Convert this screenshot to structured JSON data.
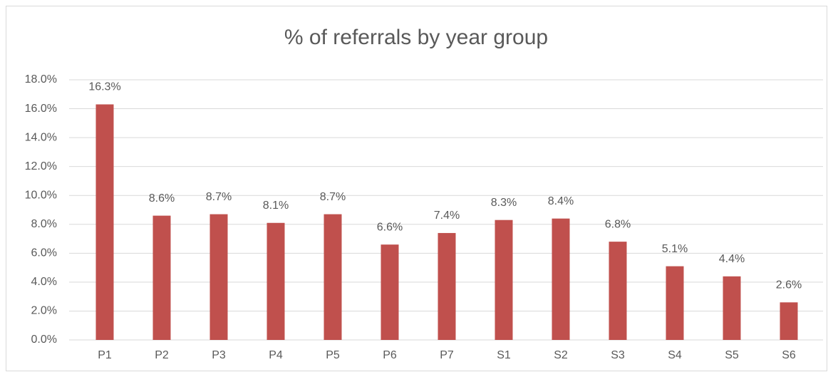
{
  "chart_data": {
    "type": "bar",
    "title": "% of referrals by year group",
    "categories": [
      "P1",
      "P2",
      "P3",
      "P4",
      "P5",
      "P6",
      "P7",
      "S1",
      "S2",
      "S3",
      "S4",
      "S5",
      "S6"
    ],
    "values": [
      16.3,
      8.6,
      8.7,
      8.1,
      8.7,
      6.6,
      7.4,
      8.3,
      8.4,
      6.8,
      5.1,
      4.4,
      2.6
    ],
    "value_labels": [
      "16.3%",
      "8.6%",
      "8.7%",
      "8.1%",
      "8.7%",
      "6.6%",
      "7.4%",
      "8.3%",
      "8.4%",
      "6.8%",
      "5.1%",
      "4.4%",
      "2.6%"
    ],
    "color": "#c0504d",
    "ylim": [
      0,
      18
    ],
    "yticks": [
      {
        "value": 0,
        "label": "0.0%"
      },
      {
        "value": 2,
        "label": "2.0%"
      },
      {
        "value": 4,
        "label": "4.0%"
      },
      {
        "value": 6,
        "label": "6.0%"
      },
      {
        "value": 8,
        "label": "8.0%"
      },
      {
        "value": 10,
        "label": "10.0%"
      },
      {
        "value": 12,
        "label": "12.0%"
      },
      {
        "value": 14,
        "label": "14.0%"
      },
      {
        "value": 16,
        "label": "16.0%"
      },
      {
        "value": 18,
        "label": "18.0%"
      }
    ],
    "grid": true
  }
}
